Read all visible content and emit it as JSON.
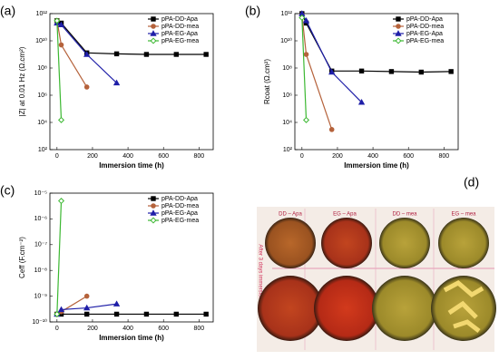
{
  "chart_data": [
    {
      "type": "line",
      "panel_label": "(a)",
      "xlabel": "Immersion time (h)",
      "ylabel": "|Z| at 0.01 Hz (Ω.cm²)",
      "log_y": true,
      "xlim": [
        -40,
        880
      ],
      "ylim": [
        100.0,
        1000000000000.0
      ],
      "xticks": [
        0,
        200,
        400,
        600,
        800
      ],
      "yticks": [
        {
          "value": 100.0,
          "label": "10²"
        },
        {
          "value": 10000.0,
          "label": "10⁴"
        },
        {
          "value": 1000000.0,
          "label": "10⁶"
        },
        {
          "value": 100000000.0,
          "label": "10⁸"
        },
        {
          "value": 10000000000.0,
          "label": "10¹⁰"
        },
        {
          "value": 1000000000000.0,
          "label": "10¹²"
        }
      ],
      "series": [
        {
          "name": "pPA-DD-Apa",
          "color": "#000000",
          "marker": "square",
          "x": [
            0,
            24,
            168,
            336,
            504,
            672,
            840
          ],
          "values": [
            300000000000.0,
            200000000000.0,
            1300000000.0,
            1100000000.0,
            1000000000.0,
            1000000000.0,
            1000000000.0
          ]
        },
        {
          "name": "pPA-DD-mea",
          "color": "#b5623b",
          "marker": "circle",
          "x": [
            0,
            24,
            168
          ],
          "values": [
            300000000000.0,
            5000000000.0,
            4000000.0
          ]
        },
        {
          "name": "pPA-EG-Apa",
          "color": "#1f1fa8",
          "marker": "triangle",
          "x": [
            0,
            24,
            168,
            336
          ],
          "values": [
            200000000000.0,
            150000000000.0,
            1000000000.0,
            8000000.0
          ]
        },
        {
          "name": "pPA-EG-mea",
          "color": "#3cb832",
          "marker": "diamond",
          "x": [
            0,
            24
          ],
          "values": [
            300000000000.0,
            15000.0
          ]
        }
      ]
    },
    {
      "type": "line",
      "panel_label": "(b)",
      "xlabel": "Immersion time (h)",
      "ylabel": "Rcoat (Ω.cm²)",
      "log_y": true,
      "xlim": [
        -40,
        880
      ],
      "ylim": [
        100.0,
        1000000000000.0
      ],
      "xticks": [
        0,
        200,
        400,
        600,
        800
      ],
      "yticks": [
        {
          "value": 100.0,
          "label": "10²"
        },
        {
          "value": 10000.0,
          "label": "10⁴"
        },
        {
          "value": 1000000.0,
          "label": "10⁶"
        },
        {
          "value": 100000000.0,
          "label": "10⁸"
        },
        {
          "value": 10000000000.0,
          "label": "10¹⁰"
        },
        {
          "value": 1000000000000.0,
          "label": "10¹²"
        }
      ],
      "series": [
        {
          "name": "pPA-DD-Apa",
          "color": "#000000",
          "marker": "square",
          "x": [
            0,
            24,
            168,
            336,
            504,
            672,
            840
          ],
          "values": [
            1000000000000.0,
            200000000000.0,
            60000000.0,
            60000000.0,
            55000000.0,
            50000000.0,
            55000000.0
          ]
        },
        {
          "name": "pPA-DD-mea",
          "color": "#b5623b",
          "marker": "circle",
          "x": [
            0,
            24,
            168
          ],
          "values": [
            800000000000.0,
            1000000000.0,
            3000.0
          ]
        },
        {
          "name": "pPA-EG-Apa",
          "color": "#1f1fa8",
          "marker": "triangle",
          "x": [
            0,
            24,
            168,
            336
          ],
          "values": [
            1000000000000.0,
            300000000000.0,
            50000000.0,
            300000.0
          ]
        },
        {
          "name": "pPA-EG-mea",
          "color": "#3cb832",
          "marker": "diamond",
          "x": [
            0,
            24
          ],
          "values": [
            500000000000.0,
            15000.0
          ]
        }
      ]
    },
    {
      "type": "line",
      "panel_label": "(c)",
      "xlabel": "Immersion time (h)",
      "ylabel": "Ceff (F.cm⁻²)",
      "log_y": true,
      "xlim": [
        -40,
        880
      ],
      "ylim": [
        1e-10,
        1e-05
      ],
      "xticks": [
        0,
        200,
        400,
        600,
        800
      ],
      "yticks": [
        {
          "value": 1e-10,
          "label": "10⁻¹⁰"
        },
        {
          "value": 1e-09,
          "label": "10⁻⁹"
        },
        {
          "value": 1e-08,
          "label": "10⁻⁸"
        },
        {
          "value": 1e-07,
          "label": "10⁻⁷"
        },
        {
          "value": 1e-06,
          "label": "10⁻⁶"
        },
        {
          "value": 1e-05,
          "label": "10⁻⁵"
        }
      ],
      "series": [
        {
          "name": "pPA-DD-Apa",
          "color": "#000000",
          "marker": "square",
          "x": [
            0,
            24,
            168,
            336,
            504,
            672,
            840
          ],
          "values": [
            2e-10,
            2e-10,
            2e-10,
            2e-10,
            2e-10,
            2e-10,
            2e-10
          ]
        },
        {
          "name": "pPA-DD-mea",
          "color": "#b5623b",
          "marker": "circle",
          "x": [
            0,
            24,
            168
          ],
          "values": [
            2e-10,
            2.5e-10,
            1e-09
          ]
        },
        {
          "name": "pPA-EG-Apa",
          "color": "#1f1fa8",
          "marker": "triangle",
          "x": [
            0,
            24,
            168,
            336
          ],
          "values": [
            2e-10,
            3e-10,
            3.5e-10,
            5e-10
          ]
        },
        {
          "name": "pPA-EG-mea",
          "color": "#3cb832",
          "marker": "diamond",
          "x": [
            0,
            24
          ],
          "values": [
            2e-10,
            5e-06
          ]
        }
      ]
    }
  ],
  "photo": {
    "panel_label": "(d)",
    "columns": [
      "DD – Apa",
      "EG – Apa",
      "DD – mea",
      "EG – mea"
    ],
    "side_label": "After 3 days immersion"
  }
}
